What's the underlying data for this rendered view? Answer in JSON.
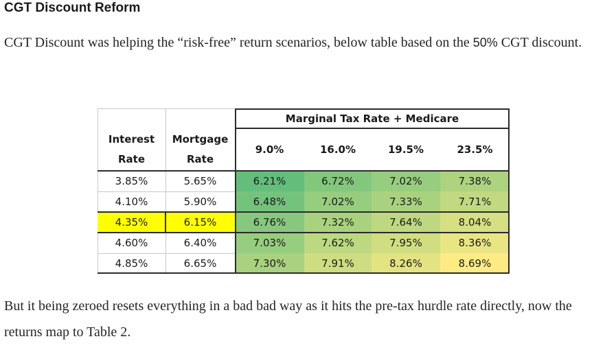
{
  "heading": "CGT Discount Reform",
  "para1": {
    "text_before": "CGT Discount was helping the “risk-free” return scenarios, below table based on the ",
    "strong": "50%",
    "text_after": " CGT discount."
  },
  "table": {
    "group_header": "Marginal Tax Rate + Medicare",
    "col_interest": [
      "Interest",
      "Rate"
    ],
    "col_mortgage": [
      "Mortgage",
      "Rate"
    ],
    "tax_rates": [
      "9.0%",
      "16.0%",
      "19.5%",
      "23.5%"
    ],
    "rows": [
      {
        "interest": "3.85%",
        "mortgage": "5.65%",
        "values": [
          "6.21%",
          "6.72%",
          "7.02%",
          "7.38%"
        ]
      },
      {
        "interest": "4.10%",
        "mortgage": "5.90%",
        "values": [
          "6.48%",
          "7.02%",
          "7.33%",
          "7.71%"
        ]
      },
      {
        "interest": "4.35%",
        "mortgage": "6.15%",
        "values": [
          "6.76%",
          "7.32%",
          "7.64%",
          "8.04%"
        ]
      },
      {
        "interest": "4.60%",
        "mortgage": "6.40%",
        "values": [
          "7.03%",
          "7.62%",
          "7.95%",
          "8.36%"
        ]
      },
      {
        "interest": "4.85%",
        "mortgage": "6.65%",
        "values": [
          "7.30%",
          "7.91%",
          "8.26%",
          "8.69%"
        ]
      }
    ],
    "highlighted_row_index": 2,
    "colors": {
      "highlight_yellow": "#ffff00",
      "heat_green": "#63be7b",
      "heat_yellow": "#ffeb84"
    }
  },
  "para2": "But it being zeroed resets everything in a bad bad way as it hits the pre-tax hurdle rate directly, now the returns map to Table 2."
}
